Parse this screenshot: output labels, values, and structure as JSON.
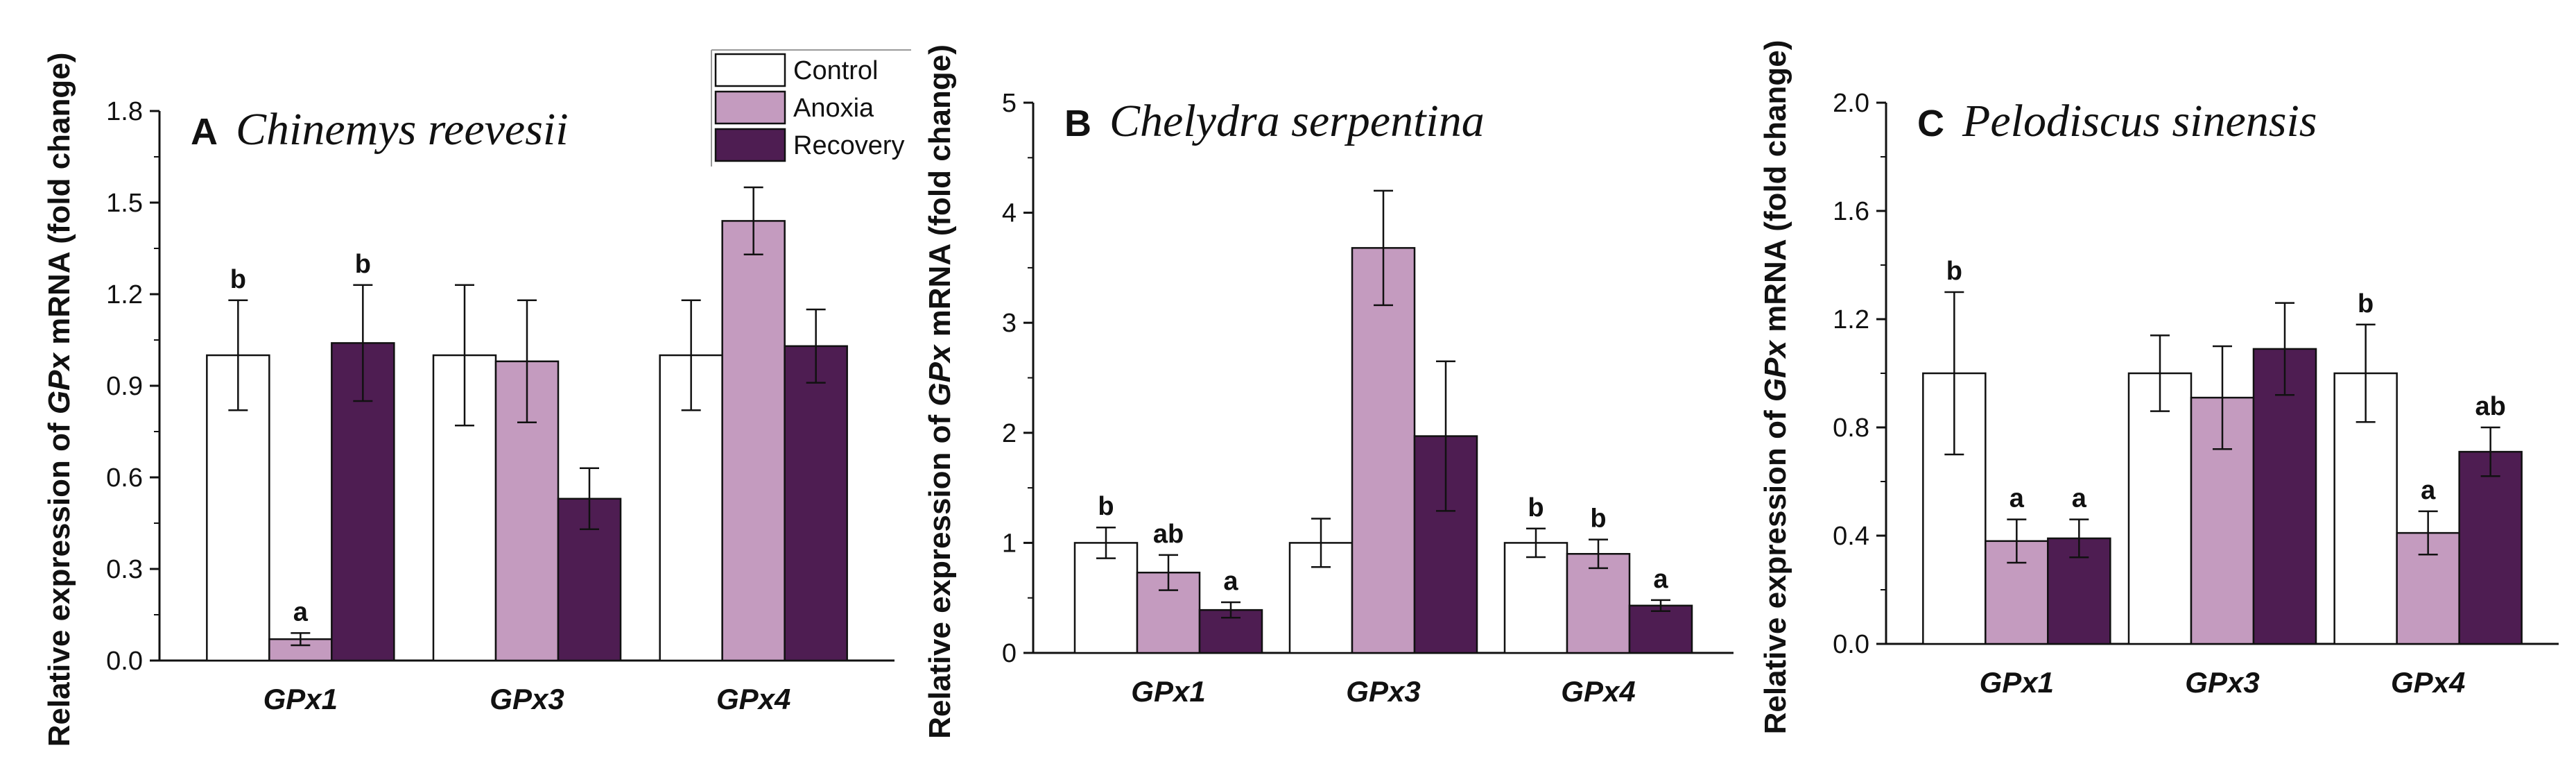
{
  "figure": {
    "legend": [
      {
        "label": "Control",
        "color": "#ffffff"
      },
      {
        "label": "Anoxia",
        "color": "#c49bbf"
      },
      {
        "label": "Recovery",
        "color": "#4e1d52"
      }
    ]
  },
  "chart_data": [
    {
      "type": "bar",
      "panel_letter": "A",
      "title": "Chinemys reevesii",
      "ylabel_pre": "Relative expression of ",
      "ylabel_italic": "GPx",
      "ylabel_post": " mRNA (fold change)",
      "ylim": [
        0,
        1.8
      ],
      "yticks": [
        "0.0",
        "0.3",
        "0.6",
        "0.9",
        "1.2",
        "1.5",
        "1.8"
      ],
      "tick_values": [
        0,
        0.3,
        0.6,
        0.9,
        1.2,
        1.5,
        1.8
      ],
      "categories": [
        "GPx1",
        "GPx3",
        "GPx4"
      ],
      "series": [
        {
          "name": "Control",
          "values": [
            1.0,
            1.0,
            1.0
          ],
          "errors": [
            0.18,
            0.23,
            0.18
          ],
          "sig": [
            "b",
            "",
            ""
          ]
        },
        {
          "name": "Anoxia",
          "values": [
            0.07,
            0.98,
            1.44
          ],
          "errors": [
            0.02,
            0.2,
            0.11
          ],
          "sig": [
            "a",
            "",
            ""
          ]
        },
        {
          "name": "Recovery",
          "values": [
            1.04,
            0.53,
            1.03
          ],
          "errors": [
            0.19,
            0.1,
            0.12
          ],
          "sig": [
            "b",
            "",
            ""
          ]
        }
      ]
    },
    {
      "type": "bar",
      "panel_letter": "B",
      "title": "Chelydra serpentina",
      "ylabel_pre": "Relative expression of ",
      "ylabel_italic": "GPx",
      "ylabel_post": " mRNA (fold change)",
      "ylim": [
        0,
        5
      ],
      "yticks": [
        "0",
        "1",
        "2",
        "3",
        "4",
        "5"
      ],
      "tick_values": [
        0,
        1,
        2,
        3,
        4,
        5
      ],
      "categories": [
        "GPx1",
        "GPx3",
        "GPx4"
      ],
      "series": [
        {
          "name": "Control",
          "values": [
            1.0,
            1.0,
            1.0
          ],
          "errors": [
            0.14,
            0.22,
            0.13
          ],
          "sig": [
            "b",
            "",
            "b"
          ]
        },
        {
          "name": "Anoxia",
          "values": [
            0.73,
            3.68,
            0.9
          ],
          "errors": [
            0.16,
            0.52,
            0.13
          ],
          "sig": [
            "ab",
            "",
            "b"
          ]
        },
        {
          "name": "Recovery",
          "values": [
            0.39,
            1.97,
            0.43
          ],
          "errors": [
            0.07,
            0.68,
            0.05
          ],
          "sig": [
            "a",
            "",
            "a"
          ]
        }
      ]
    },
    {
      "type": "bar",
      "panel_letter": "C",
      "title": "Pelodiscus sinensis",
      "ylabel_pre": "Relative expression of ",
      "ylabel_italic": "GPx",
      "ylabel_post": " mRNA (fold change)",
      "ylim": [
        0,
        2.0
      ],
      "yticks": [
        "0.0",
        "0.4",
        "0.8",
        "1.2",
        "1.6",
        "2.0"
      ],
      "tick_values": [
        0,
        0.4,
        0.8,
        1.2,
        1.6,
        2.0
      ],
      "categories": [
        "GPx1",
        "GPx3",
        "GPx4"
      ],
      "series": [
        {
          "name": "Control",
          "values": [
            1.0,
            1.0,
            1.0
          ],
          "errors": [
            0.3,
            0.14,
            0.18
          ],
          "sig": [
            "b",
            "",
            "b"
          ]
        },
        {
          "name": "Anoxia",
          "values": [
            0.38,
            0.91,
            0.41
          ],
          "errors": [
            0.08,
            0.19,
            0.08
          ],
          "sig": [
            "a",
            "",
            "a"
          ]
        },
        {
          "name": "Recovery",
          "values": [
            0.39,
            1.09,
            0.71
          ],
          "errors": [
            0.07,
            0.17,
            0.09
          ],
          "sig": [
            "a",
            "",
            "ab"
          ]
        }
      ]
    }
  ]
}
